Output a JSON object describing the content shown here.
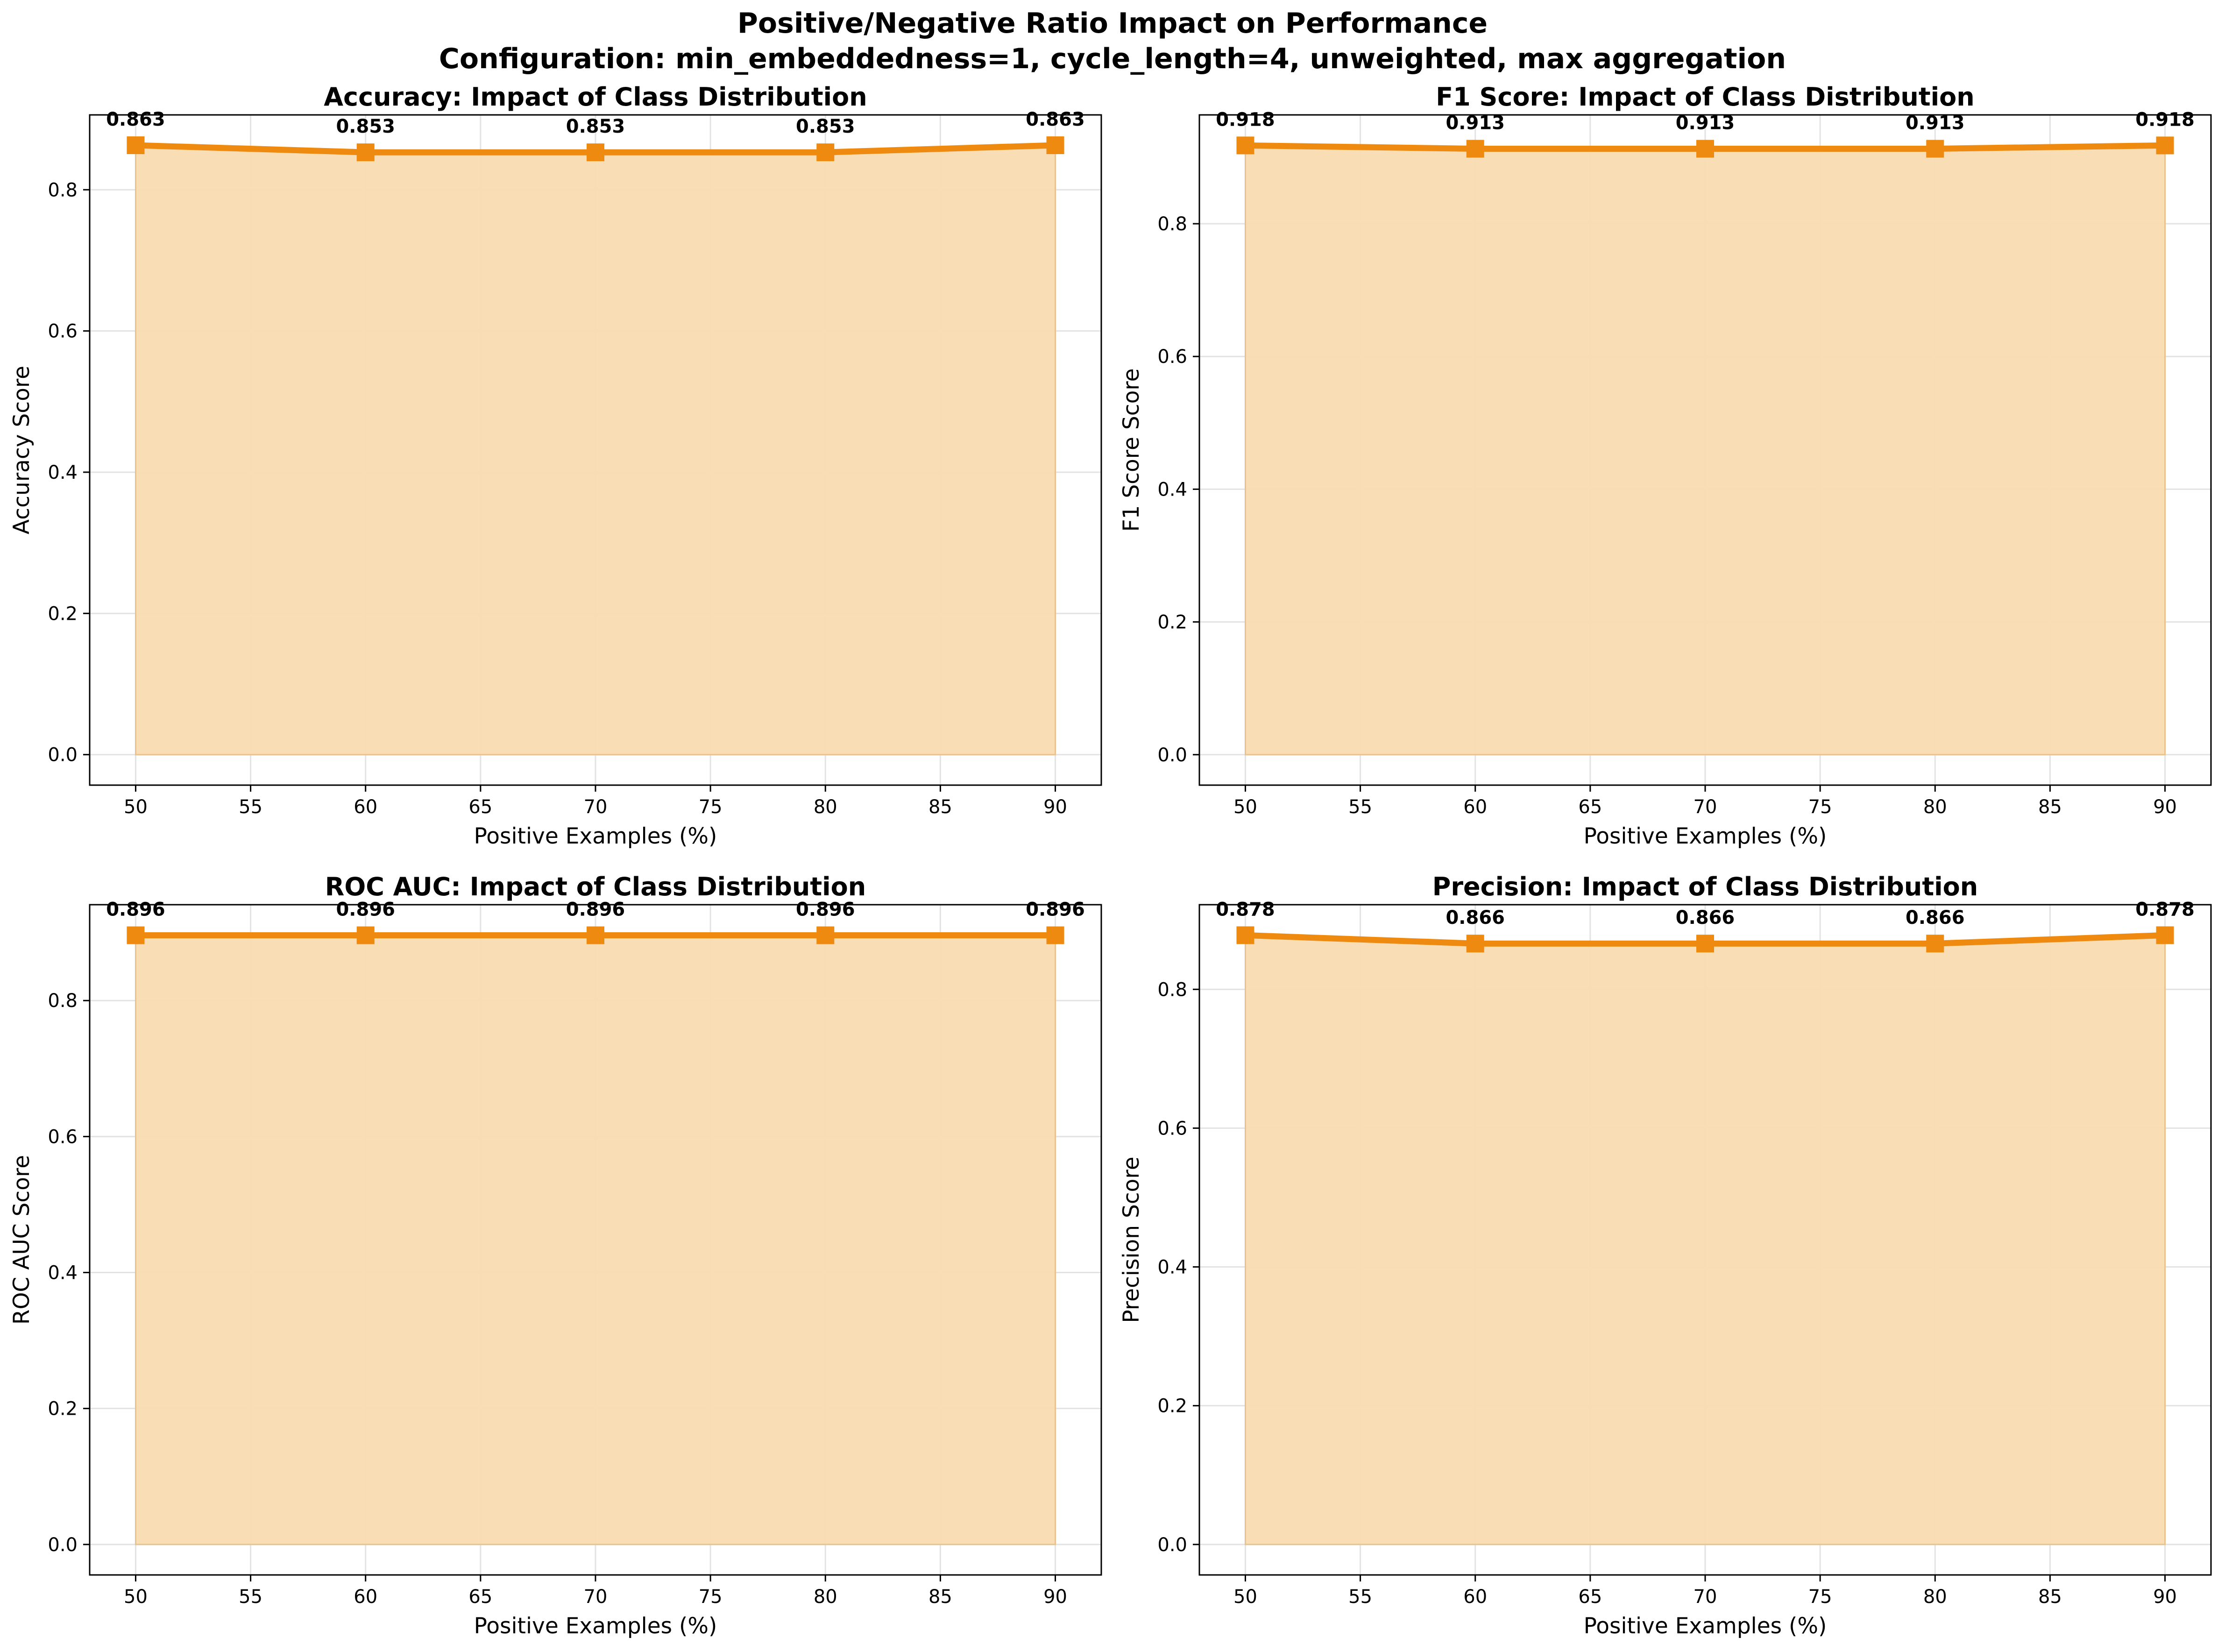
{
  "figure": {
    "title_line1": "Positive/Negative Ratio Impact on Performance",
    "title_line2": "Configuration: min_embeddedness=1, cycle_length=4, unweighted, max aggregation"
  },
  "style": {
    "line_color": "#ef8a10",
    "fill_color": "#f9dbb0",
    "grid_color": "#e3e3e3",
    "marker": "square",
    "grid": true
  },
  "chart_data": [
    {
      "type": "area",
      "title": "Accuracy: Impact of Class Distribution",
      "xlabel": "Positive Examples (%)",
      "ylabel": "Accuracy Score",
      "x": [
        50,
        60,
        70,
        80,
        90
      ],
      "y": [
        0.863,
        0.853,
        0.853,
        0.853,
        0.863
      ],
      "data_labels": [
        "0.863",
        "0.853",
        "0.853",
        "0.853",
        "0.863"
      ],
      "xticks": [
        50,
        55,
        60,
        65,
        70,
        75,
        80,
        85,
        90
      ],
      "xtick_labels": [
        "50",
        "55",
        "60",
        "65",
        "70",
        "75",
        "80",
        "85",
        "90"
      ],
      "yticks": [
        0.0,
        0.2,
        0.4,
        0.6,
        0.8
      ],
      "ytick_labels": [
        "0.0",
        "0.2",
        "0.4",
        "0.6",
        "0.8"
      ],
      "xlim": [
        48,
        92
      ],
      "ylim": [
        -0.0432,
        0.906
      ]
    },
    {
      "type": "area",
      "title": "F1 Score: Impact of Class Distribution",
      "xlabel": "Positive Examples (%)",
      "ylabel": "F1 Score Score",
      "x": [
        50,
        60,
        70,
        80,
        90
      ],
      "y": [
        0.918,
        0.913,
        0.913,
        0.913,
        0.918
      ],
      "data_labels": [
        "0.918",
        "0.913",
        "0.913",
        "0.913",
        "0.918"
      ],
      "xticks": [
        50,
        55,
        60,
        65,
        70,
        75,
        80,
        85,
        90
      ],
      "xtick_labels": [
        "50",
        "55",
        "60",
        "65",
        "70",
        "75",
        "80",
        "85",
        "90"
      ],
      "yticks": [
        0.0,
        0.2,
        0.4,
        0.6,
        0.8
      ],
      "ytick_labels": [
        "0.0",
        "0.2",
        "0.4",
        "0.6",
        "0.8"
      ],
      "xlim": [
        48,
        92
      ],
      "ylim": [
        -0.0459,
        0.964
      ]
    },
    {
      "type": "area",
      "title": "ROC AUC: Impact of Class Distribution",
      "xlabel": "Positive Examples (%)",
      "ylabel": "ROC AUC Score",
      "x": [
        50,
        60,
        70,
        80,
        90
      ],
      "y": [
        0.896,
        0.896,
        0.896,
        0.896,
        0.896
      ],
      "data_labels": [
        "0.896",
        "0.896",
        "0.896",
        "0.896",
        "0.896"
      ],
      "xticks": [
        50,
        55,
        60,
        65,
        70,
        75,
        80,
        85,
        90
      ],
      "xtick_labels": [
        "50",
        "55",
        "60",
        "65",
        "70",
        "75",
        "80",
        "85",
        "90"
      ],
      "yticks": [
        0.0,
        0.2,
        0.4,
        0.6,
        0.8
      ],
      "ytick_labels": [
        "0.0",
        "0.2",
        "0.4",
        "0.6",
        "0.8"
      ],
      "xlim": [
        48,
        92
      ],
      "ylim": [
        -0.0448,
        0.941
      ]
    },
    {
      "type": "area",
      "title": "Precision: Impact of Class Distribution",
      "xlabel": "Positive Examples (%)",
      "ylabel": "Precision Score",
      "x": [
        50,
        60,
        70,
        80,
        90
      ],
      "y": [
        0.878,
        0.866,
        0.866,
        0.866,
        0.878
      ],
      "data_labels": [
        "0.878",
        "0.866",
        "0.866",
        "0.866",
        "0.878"
      ],
      "xticks": [
        50,
        55,
        60,
        65,
        70,
        75,
        80,
        85,
        90
      ],
      "xtick_labels": [
        "50",
        "55",
        "60",
        "65",
        "70",
        "75",
        "80",
        "85",
        "90"
      ],
      "yticks": [
        0.0,
        0.2,
        0.4,
        0.6,
        0.8
      ],
      "ytick_labels": [
        "0.0",
        "0.2",
        "0.4",
        "0.6",
        "0.8"
      ],
      "xlim": [
        48,
        92
      ],
      "ylim": [
        -0.0439,
        0.922
      ]
    }
  ]
}
